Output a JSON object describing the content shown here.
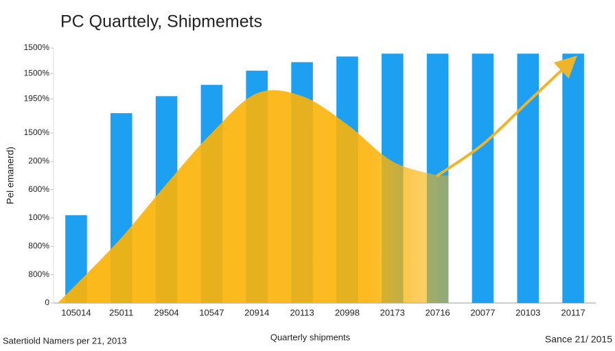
{
  "chart_data": {
    "type": "bar",
    "title": "PC Quarttely, Shipmemets",
    "y_label": "Pel emanerd)",
    "x_label": "Quarterly shipments",
    "footnote_left": "Satertiold Namers per 21, 2013",
    "footnote_right": "Sance 21/ 2015",
    "categories": [
      "105014",
      "25011",
      "29504",
      "10547",
      "20914",
      "20113",
      "20998",
      "20173",
      "20716",
      "20077",
      "20103",
      "20117"
    ],
    "ylim": [
      0,
      9
    ],
    "yticks": [
      0,
      {
        "value": 1,
        "label": "800%"
      },
      {
        "value": 2,
        "label": "800%"
      },
      {
        "value": 3,
        "label": "100%"
      },
      {
        "value": 4,
        "label": "600%"
      },
      {
        "value": 5,
        "label": "200%"
      },
      {
        "value": 6,
        "label": "1500%"
      },
      {
        "value": 7.2,
        "label": "1950%"
      },
      {
        "value": 8.1,
        "label": "1500%"
      },
      {
        "value": 9,
        "label": "1500%"
      }
    ],
    "series": [
      {
        "type": "bar",
        "color": "#1ea0f2",
        "values": [
          3.1,
          6.7,
          7.3,
          7.7,
          8.2,
          8.5,
          8.7,
          8.8,
          8.8,
          8.8,
          8.8,
          8.8
        ]
      },
      {
        "type": "area",
        "color": "#fbb307",
        "values": [
          0.65,
          2.3,
          4.2,
          6.0,
          7.4,
          7.3,
          6.3,
          5.0,
          4.5,
          null,
          null,
          null
        ]
      },
      {
        "type": "line",
        "color": "#f0b429",
        "values": [
          null,
          null,
          null,
          null,
          null,
          null,
          null,
          null,
          4.5,
          5.6,
          7.1,
          8.6
        ]
      }
    ]
  }
}
